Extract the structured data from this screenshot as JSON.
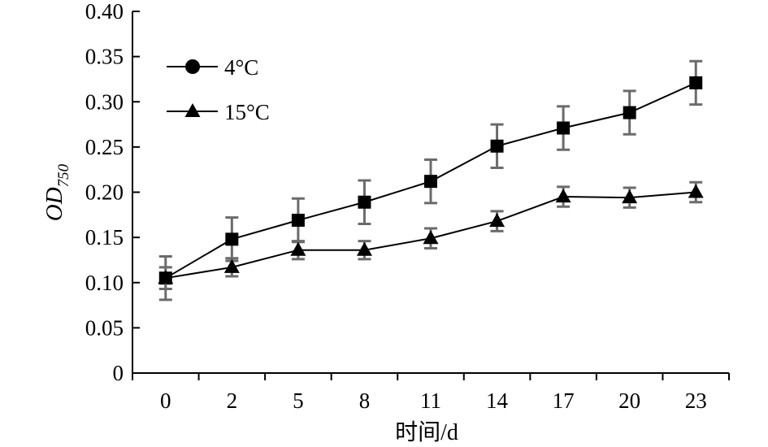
{
  "chart_data": {
    "type": "line",
    "categories": [
      "0",
      "2",
      "5",
      "8",
      "11",
      "14",
      "17",
      "20",
      "23"
    ],
    "ylim": [
      0,
      0.4
    ],
    "y_ticks": [
      "0",
      "0.05",
      "0.10",
      "0.15",
      "0.20",
      "0.25",
      "0.30",
      "0.35",
      "0.40"
    ],
    "xlabel": "时间/d",
    "ylabel_main": "OD",
    "ylabel_sub": "750",
    "legend_position": "top-left",
    "grid": false,
    "series": [
      {
        "name": "4°C",
        "marker": "square",
        "legend_marker": "circle",
        "values": [
          0.105,
          0.148,
          0.169,
          0.189,
          0.212,
          0.251,
          0.271,
          0.288,
          0.321
        ],
        "errors": [
          0.024,
          0.024,
          0.024,
          0.024,
          0.024,
          0.024,
          0.024,
          0.024,
          0.024
        ]
      },
      {
        "name": "15°C",
        "marker": "triangle",
        "legend_marker": "triangle",
        "values": [
          0.105,
          0.117,
          0.136,
          0.136,
          0.149,
          0.168,
          0.195,
          0.194,
          0.2
        ],
        "errors": [
          0.012,
          0.01,
          0.01,
          0.01,
          0.011,
          0.011,
          0.011,
          0.011,
          0.011
        ]
      }
    ],
    "colors": {
      "line": "#000000",
      "error_bar": "#6b6b6b"
    }
  }
}
